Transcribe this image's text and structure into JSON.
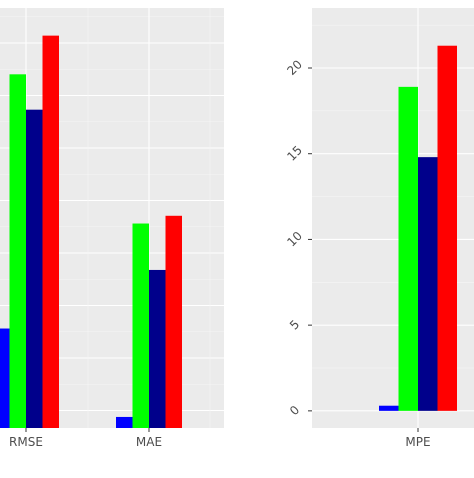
{
  "chart_data": [
    {
      "type": "bar",
      "categories": [
        "RMSE",
        "MAE"
      ],
      "series": [
        {
          "color": "#0000ff",
          "values": [
            9.0,
            1.0
          ]
        },
        {
          "color": "#00ff00",
          "values": [
            32.0,
            18.5
          ]
        },
        {
          "color": "#00008b",
          "values": [
            28.8,
            14.3
          ]
        },
        {
          "color": "#ff0000",
          "values": [
            35.5,
            19.2
          ]
        }
      ],
      "ylim": [
        0,
        38
      ],
      "yticks": [],
      "title": "",
      "xlabel": "",
      "ylabel": "",
      "grid": true,
      "legend": "none"
    },
    {
      "type": "bar",
      "categories": [
        "MPE"
      ],
      "series": [
        {
          "color": "#0000ff",
          "values": [
            0.3
          ]
        },
        {
          "color": "#00ff00",
          "values": [
            18.9
          ]
        },
        {
          "color": "#00008b",
          "values": [
            14.8
          ]
        },
        {
          "color": "#ff0000",
          "values": [
            21.3
          ]
        }
      ],
      "ylim": [
        -1,
        23.5
      ],
      "yticks": [
        "0",
        "5",
        "10",
        "15",
        "20"
      ],
      "title": "",
      "xlabel": "",
      "ylabel": "",
      "grid": true,
      "legend": "none"
    }
  ]
}
